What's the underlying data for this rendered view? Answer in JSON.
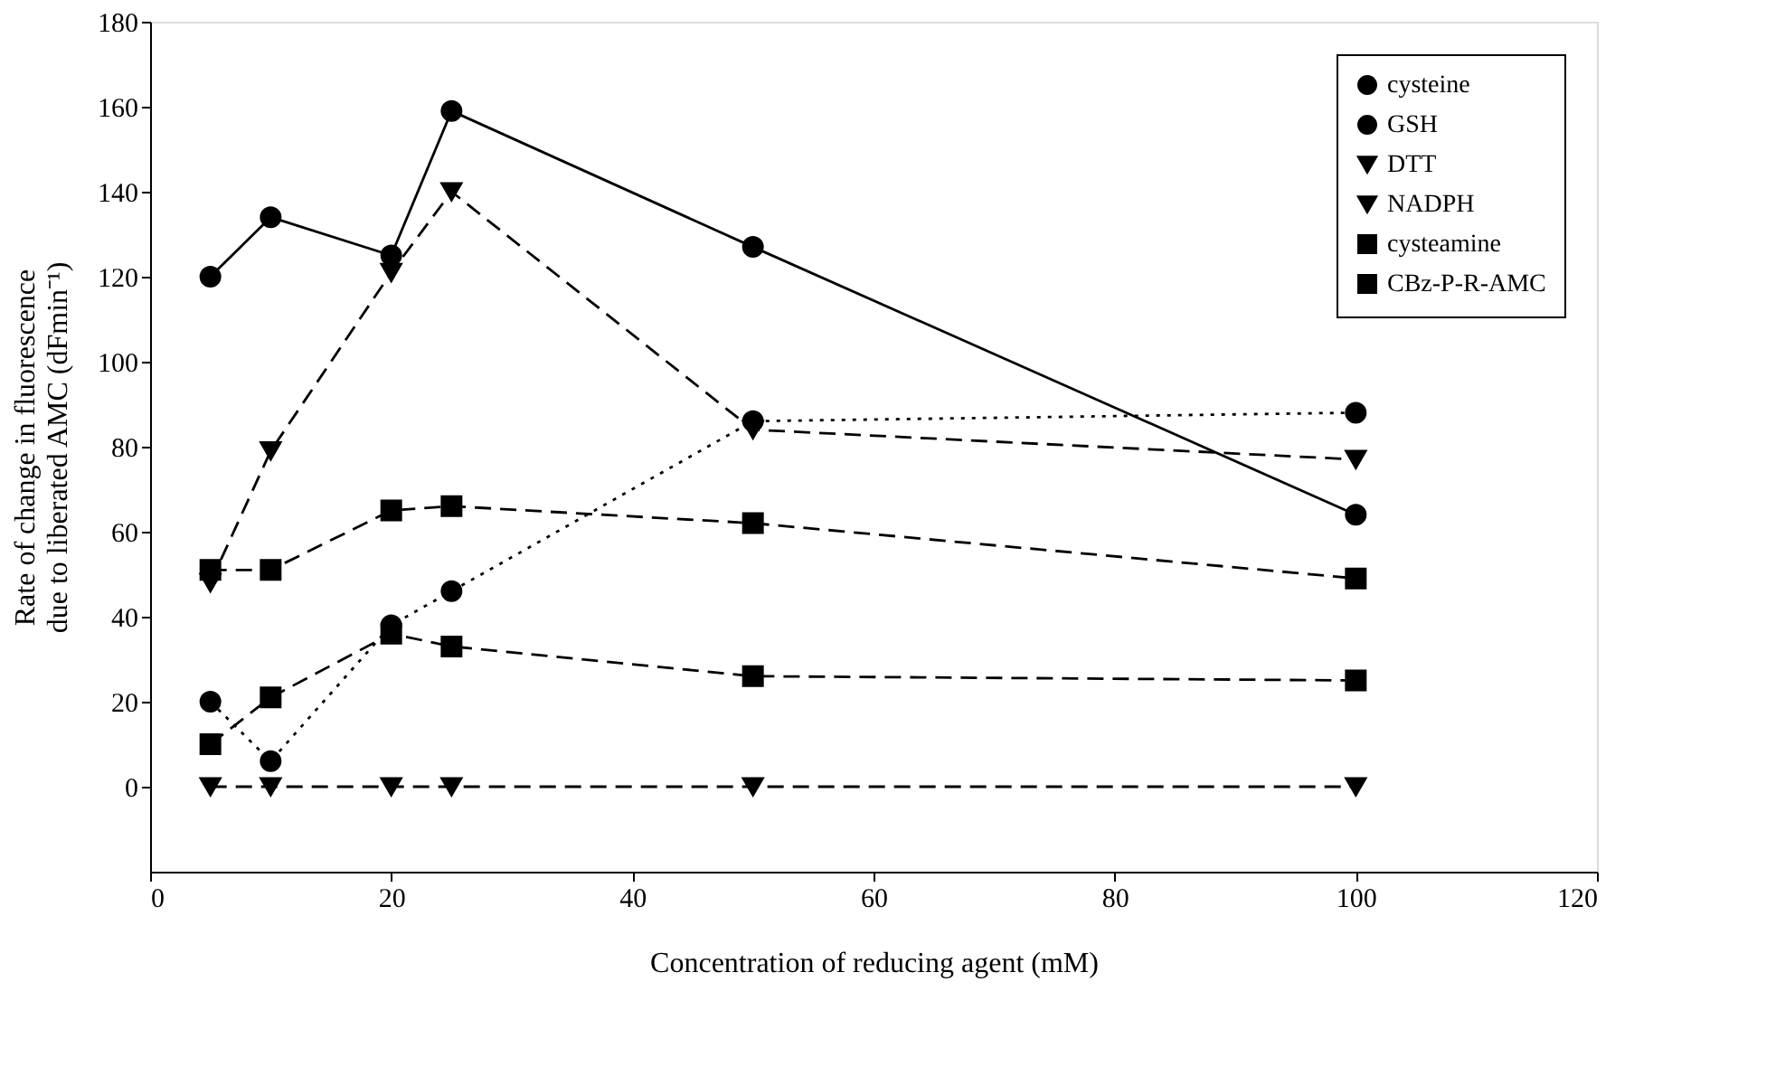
{
  "chart_data": {
    "type": "line",
    "xlabel": "Concentration of reducing agent (mM)",
    "ylabel": "Rate of change in fluorescence\ndue to liberated AMC (dFmin⁻¹)",
    "x": [
      5,
      10,
      20,
      25,
      50,
      100
    ],
    "xlim": [
      0,
      120
    ],
    "xticks": [
      0,
      20,
      40,
      60,
      80,
      100,
      120
    ],
    "ylim": [
      -20,
      180
    ],
    "yticks": [
      0,
      20,
      40,
      60,
      80,
      100,
      120,
      140,
      160,
      180
    ],
    "grid": false,
    "legend": "top right",
    "series": [
      {
        "name": "cysteine",
        "color": "#000000",
        "marker": "circle",
        "line_style": "solid",
        "values": [
          120,
          134,
          125,
          159,
          127,
          64
        ]
      },
      {
        "name": "GSH",
        "color": "#000000",
        "marker": "circle",
        "line_style": "dotted",
        "values": [
          20,
          6,
          38,
          46,
          86,
          88
        ]
      },
      {
        "name": "DTT",
        "color": "#000000",
        "marker": "triangle",
        "line_style": "dashed",
        "values": [
          48,
          79,
          121,
          140,
          84,
          77
        ]
      },
      {
        "name": "NADPH",
        "color": "#000000",
        "marker": "triangle",
        "line_style": "dashed",
        "values": [
          0,
          0,
          0,
          0,
          0,
          0
        ]
      },
      {
        "name": "cysteamine",
        "color": "#000000",
        "marker": "square",
        "line_style": "dashed",
        "values": [
          10,
          21,
          36,
          33,
          26,
          25
        ]
      },
      {
        "name": "CBz-P-R-AMC",
        "color": "#000000",
        "marker": "square",
        "line_style": "dashed",
        "values": [
          51,
          51,
          65,
          66,
          62,
          49
        ]
      }
    ]
  }
}
